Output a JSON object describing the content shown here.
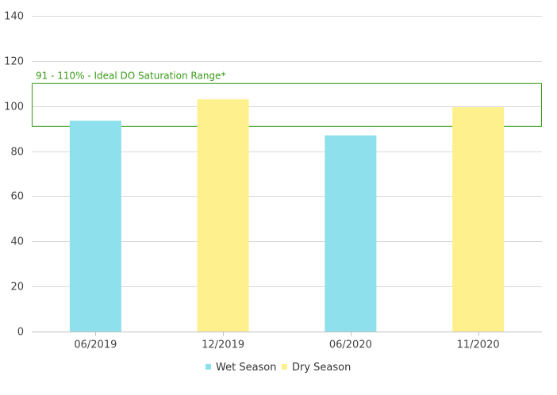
{
  "chart_data": {
    "type": "bar",
    "categories": [
      "06/2019",
      "12/2019",
      "06/2020",
      "11/2020"
    ],
    "values": [
      93.5,
      103,
      87,
      99.5
    ],
    "bar_series": [
      "Wet Season",
      "Dry Season",
      "Wet Season",
      "Dry Season"
    ],
    "series": [
      {
        "name": "Wet Season",
        "color": "#8ee0ec"
      },
      {
        "name": "Dry Season",
        "color": "#fdf08d"
      }
    ],
    "ylim": [
      0,
      140
    ],
    "yticks": [
      0,
      20,
      40,
      60,
      80,
      100,
      120,
      140
    ],
    "grid": true,
    "legend_position": "bottom",
    "annotation": {
      "text": "91 - 110% - Ideal DO Saturation Range*",
      "range": [
        91,
        110
      ],
      "color": "#3a9a1a"
    }
  }
}
